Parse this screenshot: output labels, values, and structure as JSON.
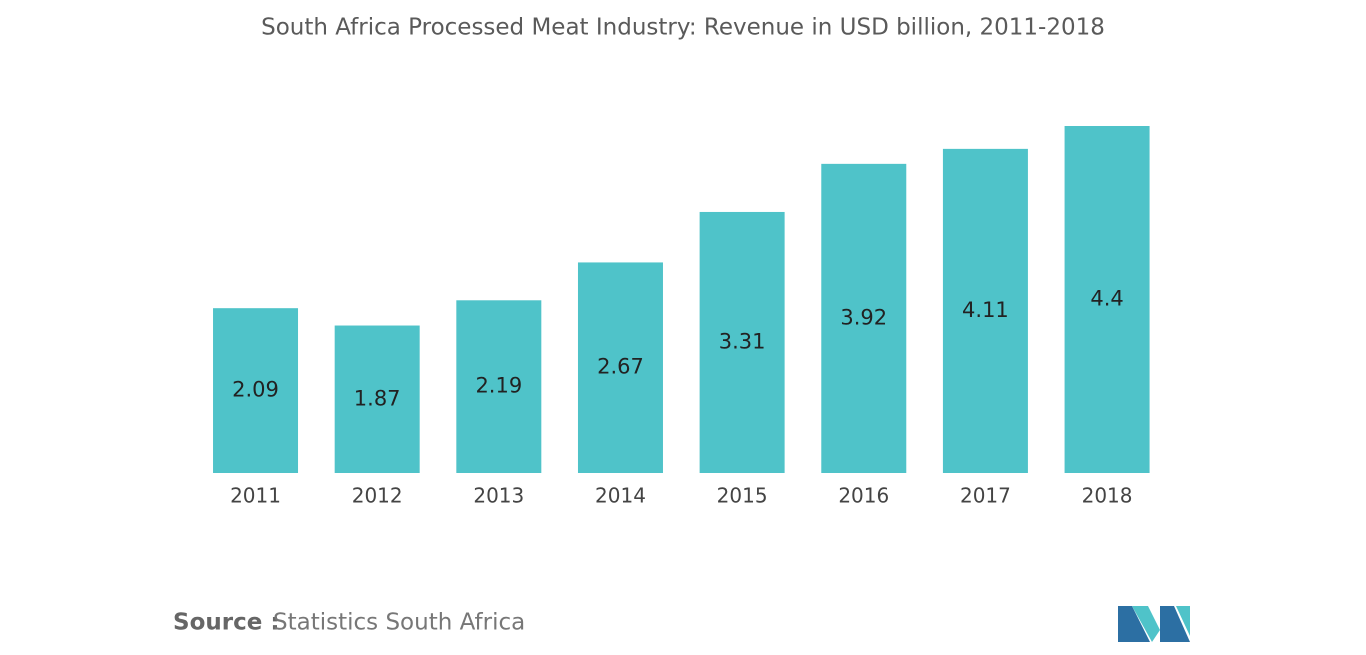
{
  "chart_data": {
    "type": "bar",
    "title": "South Africa Processed Meat Industry: Revenue in USD billion, 2011-2018",
    "categories": [
      "2011",
      "2012",
      "2013",
      "2014",
      "2015",
      "2016",
      "2017",
      "2018"
    ],
    "values": [
      2.09,
      1.87,
      2.19,
      2.67,
      3.31,
      3.92,
      4.11,
      4.4
    ],
    "color": "#4fc3c9"
  },
  "source": {
    "label": "Source :",
    "text": "Statistics South Africa"
  }
}
